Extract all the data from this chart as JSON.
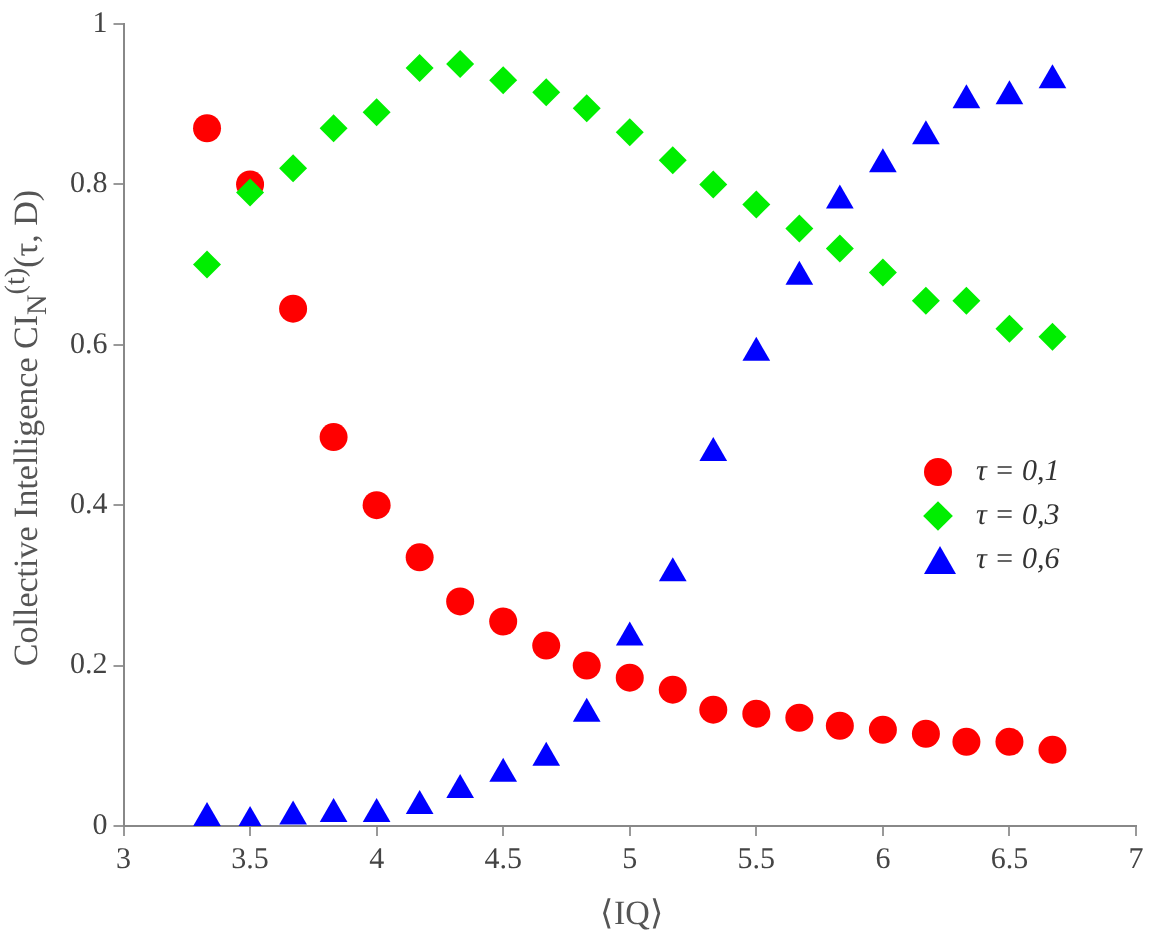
{
  "chart_data": {
    "type": "scatter",
    "xlabel": "⟨IQ⟩",
    "ylabel": "Collective Intelligence CI$_{N}$$^{(t)}$(τ, D)",
    "x": [
      3.33,
      3.5,
      3.67,
      3.83,
      4.0,
      4.17,
      4.33,
      4.5,
      4.67,
      4.83,
      5.0,
      5.17,
      5.33,
      5.5,
      5.67,
      5.83,
      6.0,
      6.17,
      6.33,
      6.5,
      6.67
    ],
    "series": [
      {
        "name": "τ = 0,1",
        "color": "#ff0000",
        "marker": "circle",
        "values": [
          0.87,
          0.8,
          0.645,
          0.485,
          0.4,
          0.335,
          0.28,
          0.255,
          0.225,
          0.2,
          0.185,
          0.17,
          0.145,
          0.14,
          0.135,
          0.125,
          0.12,
          0.115,
          0.105,
          0.105,
          0.095
        ]
      },
      {
        "name": "τ = 0,3",
        "color": "#00ee00",
        "marker": "diamond",
        "values": [
          0.7,
          0.79,
          0.82,
          0.87,
          0.89,
          0.945,
          0.95,
          0.93,
          0.915,
          0.895,
          0.865,
          0.83,
          0.8,
          0.775,
          0.745,
          0.72,
          0.69,
          0.655,
          0.655,
          0.62,
          0.61
        ]
      },
      {
        "name": "τ = 0,6",
        "color": "#0000ff",
        "marker": "triangle",
        "values": [
          0.01,
          0.005,
          0.012,
          0.015,
          0.015,
          0.025,
          0.045,
          0.065,
          0.085,
          0.14,
          0.235,
          0.315,
          0.465,
          0.59,
          0.685,
          0.78,
          0.825,
          0.86,
          0.905,
          0.91,
          0.93
        ]
      }
    ],
    "xlim": [
      3,
      7
    ],
    "xticks": [
      3,
      3.5,
      4,
      4.5,
      5,
      5.5,
      6,
      6.5,
      7
    ],
    "ylim": [
      0,
      1
    ],
    "yticks": [
      0,
      0.2,
      0.4,
      0.6,
      0.8,
      1
    ],
    "grid": false,
    "legend": "right"
  }
}
